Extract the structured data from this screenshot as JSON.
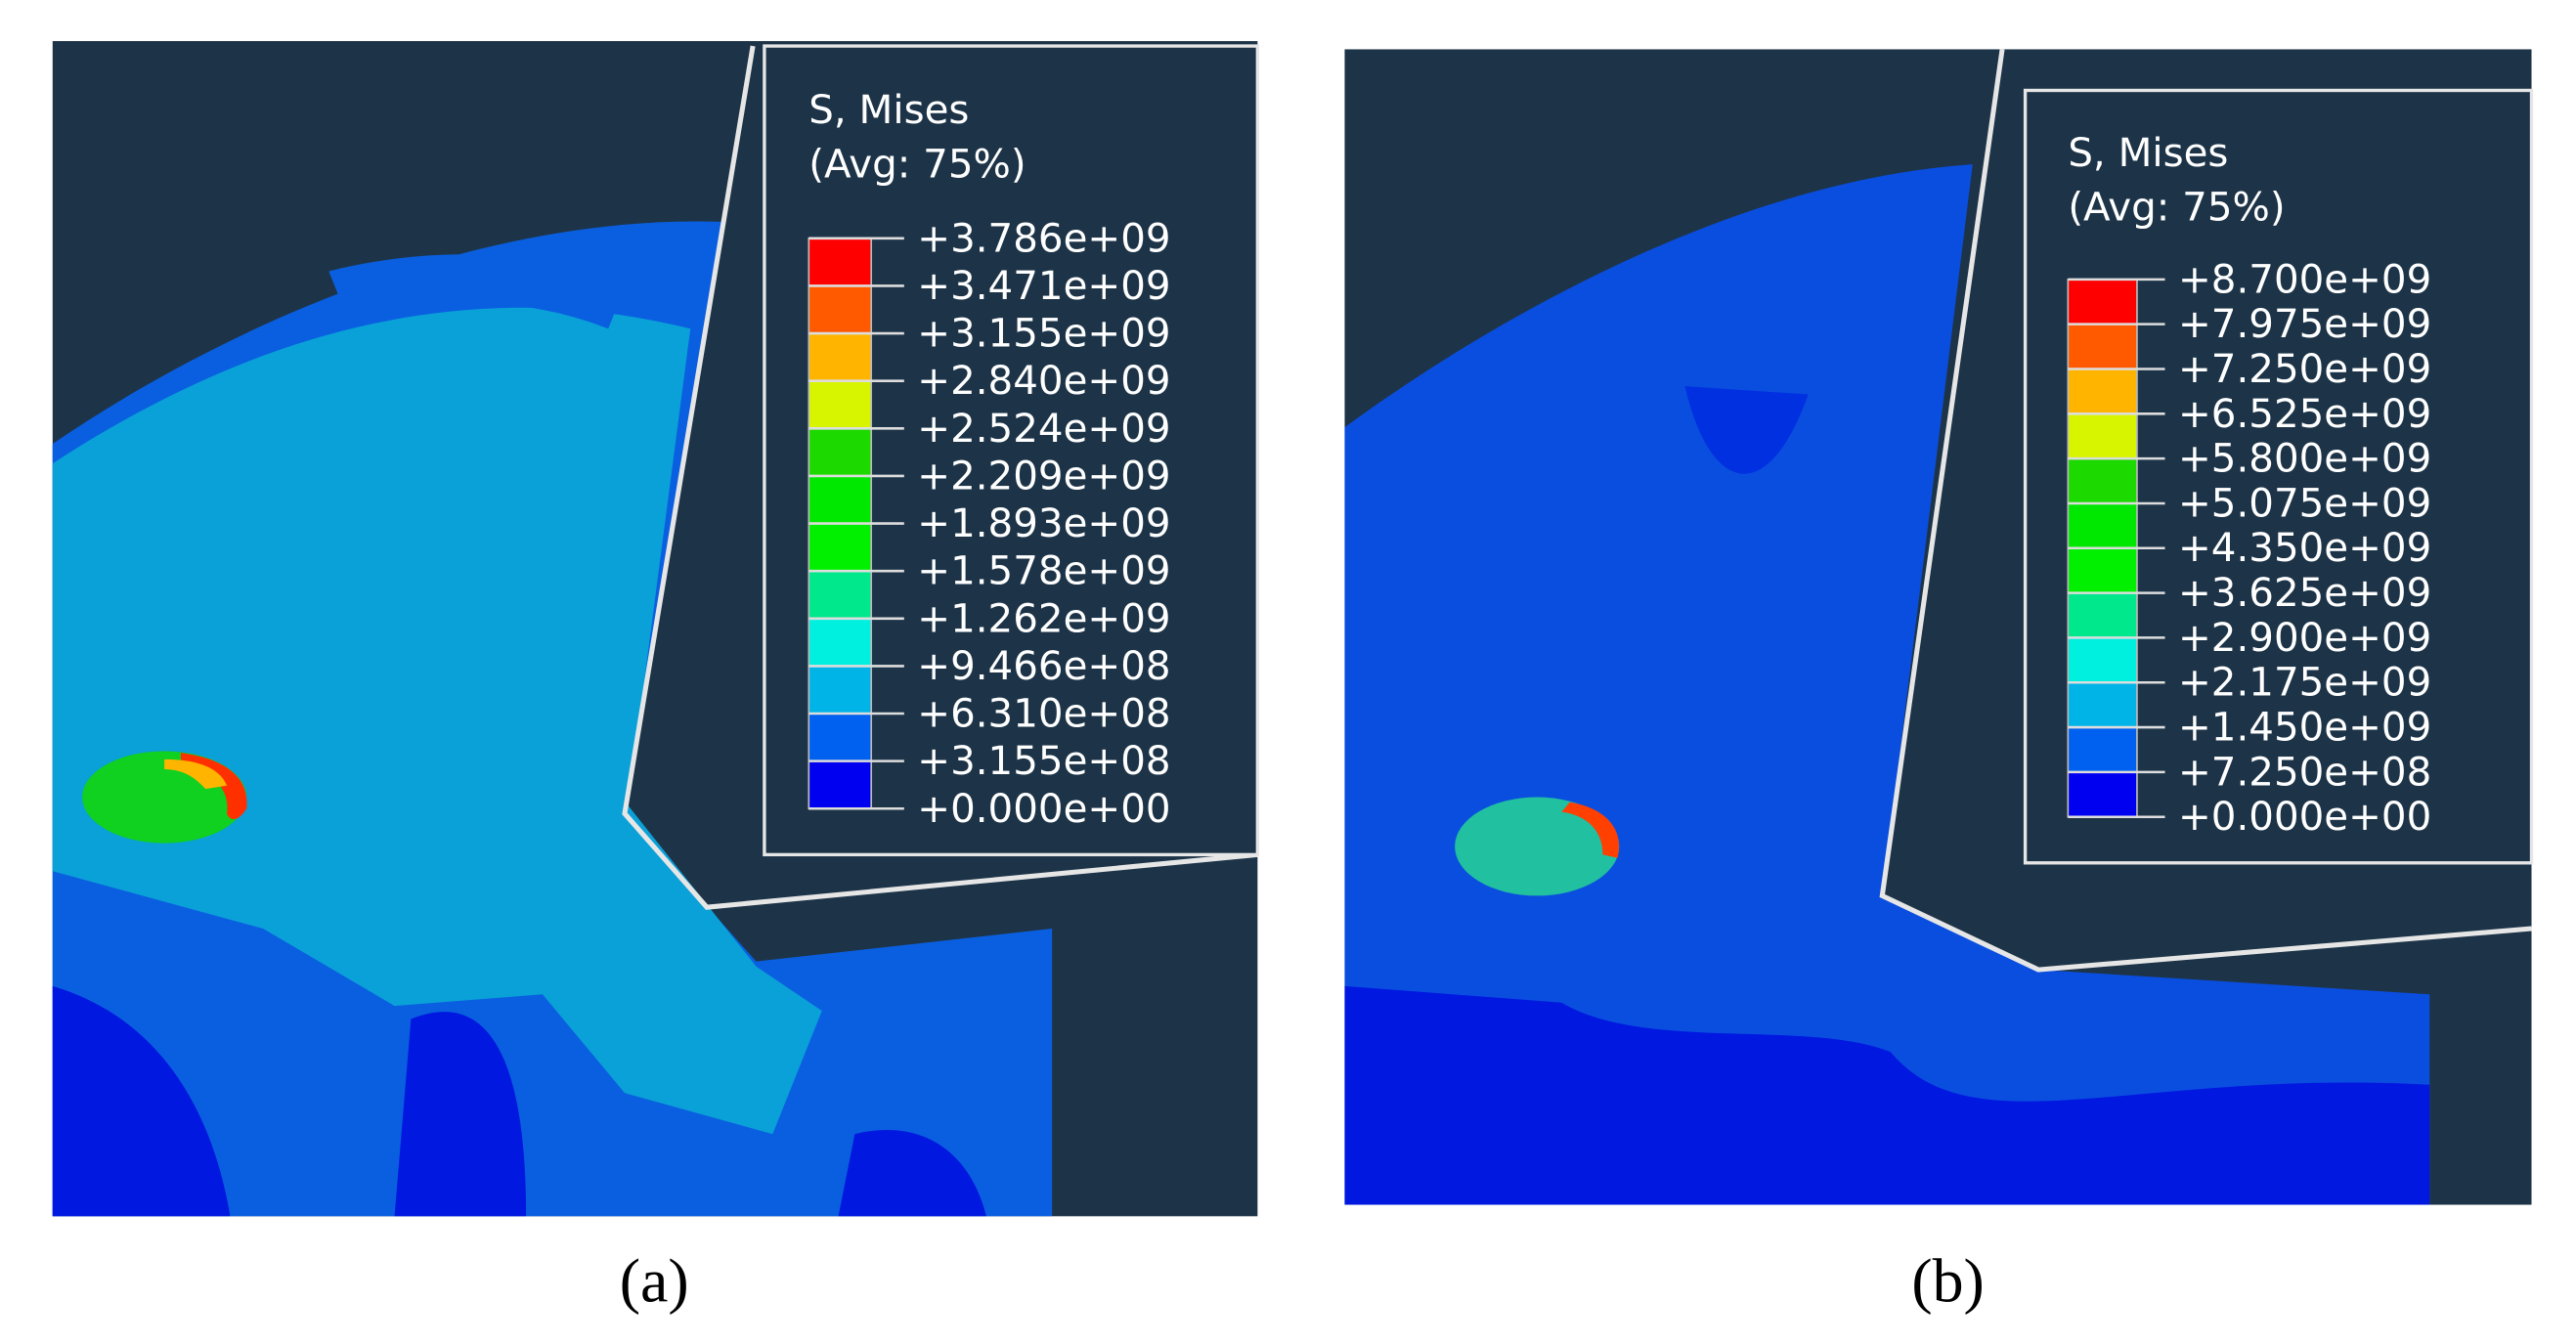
{
  "panels": [
    {
      "legend": {
        "title": "S, Mises",
        "subtitle": "(Avg: 75%)",
        "labels": [
          "+3.786e+09",
          "+3.471e+09",
          "+3.155e+09",
          "+2.840e+09",
          "+2.524e+09",
          "+2.209e+09",
          "+1.893e+09",
          "+1.578e+09",
          "+1.262e+09",
          "+9.466e+08",
          "+6.310e+08",
          "+3.155e+08",
          "+0.000e+00"
        ],
        "colors": [
          "#ff0000",
          "#ff5a00",
          "#ffb400",
          "#d8f500",
          "#1cd900",
          "#00e800",
          "#00f000",
          "#00e88c",
          "#00f0e0",
          "#00b4e8",
          "#0060f0",
          "#0000f0"
        ]
      },
      "caption": "(a)"
    },
    {
      "legend": {
        "title": "S, Mises",
        "subtitle": "(Avg: 75%)",
        "labels": [
          "+8.700e+09",
          "+7.975e+09",
          "+7.250e+09",
          "+6.525e+09",
          "+5.800e+09",
          "+5.075e+09",
          "+4.350e+09",
          "+3.625e+09",
          "+2.900e+09",
          "+2.175e+09",
          "+1.450e+09",
          "+7.250e+08",
          "+0.000e+00"
        ],
        "colors": [
          "#ff0000",
          "#ff5a00",
          "#ffb400",
          "#d8f500",
          "#1cd900",
          "#00e800",
          "#00f000",
          "#00e88c",
          "#00f0e0",
          "#00b4e8",
          "#0060f0",
          "#0000f0"
        ]
      },
      "caption": "(b)"
    }
  ]
}
